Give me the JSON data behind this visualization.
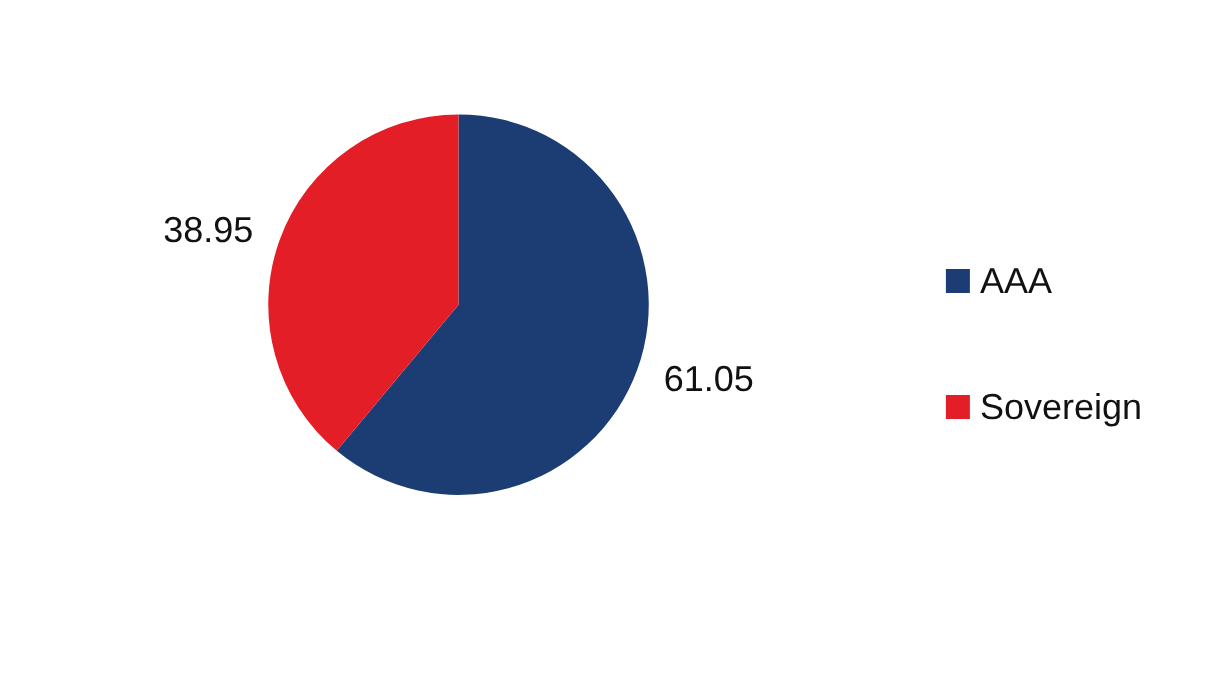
{
  "chart_data": {
    "type": "pie",
    "categories": [
      "AAA",
      "Sovereign"
    ],
    "values": [
      61.05,
      38.95
    ],
    "colors": [
      "#1b3d73",
      "#e31e26"
    ],
    "data_labels": true,
    "legend": "right"
  }
}
